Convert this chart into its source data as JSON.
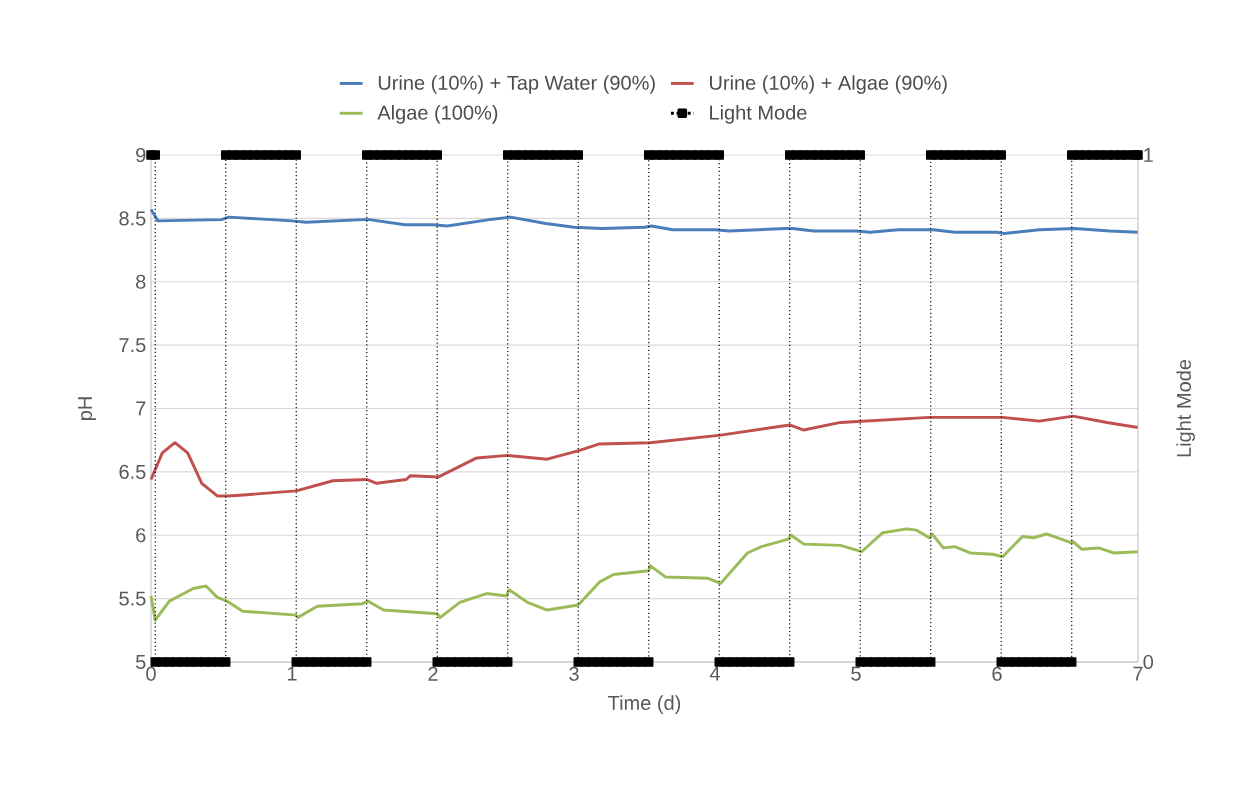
{
  "chart_data": {
    "type": "line",
    "xlabel": "Time (d)",
    "ylabel": "pH",
    "y2label": "Light Mode",
    "xlim": [
      0,
      7
    ],
    "xticks": [
      0,
      1,
      2,
      3,
      4,
      5,
      6,
      7
    ],
    "ylim": [
      5,
      9
    ],
    "yticks": [
      5,
      5.5,
      6,
      6.5,
      7,
      7.5,
      8,
      8.5,
      9
    ],
    "y2lim": [
      0,
      1
    ],
    "y2ticks": [
      0,
      1
    ],
    "grid": "y",
    "legend": "top",
    "series": [
      {
        "name": "Urine (10%) + Tap Water (90%)",
        "color": "#4a7ebb",
        "x": [
          0,
          0.05,
          0.5,
          0.55,
          1.0,
          1.1,
          1.5,
          1.55,
          1.8,
          2.0,
          2.1,
          2.4,
          2.55,
          2.8,
          3.0,
          3.2,
          3.5,
          3.55,
          3.7,
          4.0,
          4.1,
          4.5,
          4.55,
          4.7,
          5.0,
          5.1,
          5.3,
          5.55,
          5.7,
          6.0,
          6.05,
          6.3,
          6.55,
          6.8,
          7.0
        ],
        "values": [
          8.57,
          8.48,
          8.49,
          8.51,
          8.48,
          8.47,
          8.49,
          8.49,
          8.45,
          8.45,
          8.44,
          8.49,
          8.51,
          8.46,
          8.43,
          8.42,
          8.43,
          8.44,
          8.41,
          8.41,
          8.4,
          8.42,
          8.42,
          8.4,
          8.4,
          8.39,
          8.41,
          8.41,
          8.39,
          8.39,
          8.38,
          8.41,
          8.42,
          8.4,
          8.39
        ]
      },
      {
        "name": "Urine (10%) + Algae (90%)",
        "color": "#c0504d",
        "x": [
          0,
          0.08,
          0.17,
          0.26,
          0.36,
          0.47,
          0.55,
          0.68,
          1.03,
          1.29,
          1.53,
          1.6,
          1.81,
          1.84,
          2.04,
          2.31,
          2.53,
          2.81,
          3.04,
          3.18,
          3.54,
          4.04,
          4.53,
          4.63,
          4.89,
          5.52,
          6.04,
          6.3,
          6.54,
          6.78,
          7.0
        ],
        "values": [
          6.44,
          6.65,
          6.73,
          6.65,
          6.41,
          6.31,
          6.31,
          6.32,
          6.35,
          6.43,
          6.44,
          6.41,
          6.44,
          6.47,
          6.46,
          6.61,
          6.63,
          6.6,
          6.67,
          6.72,
          6.73,
          6.79,
          6.87,
          6.83,
          6.89,
          6.93,
          6.93,
          6.9,
          6.94,
          6.89,
          6.85
        ]
      },
      {
        "name": "Algae (100%)",
        "color": "#9bbb59",
        "x": [
          0,
          0.03,
          0.13,
          0.3,
          0.39,
          0.47,
          0.54,
          0.65,
          1.03,
          1.04,
          1.18,
          1.5,
          1.54,
          1.65,
          2.03,
          2.05,
          2.19,
          2.38,
          2.52,
          2.54,
          2.67,
          2.81,
          3.03,
          3.18,
          3.28,
          3.53,
          3.54,
          3.65,
          3.95,
          4.04,
          4.23,
          4.33,
          4.52,
          4.54,
          4.63,
          4.89,
          5.04,
          5.19,
          5.36,
          5.43,
          5.52,
          5.54,
          5.62,
          5.7,
          5.81,
          5.97,
          6.04,
          6.18,
          6.26,
          6.35,
          6.53,
          6.54,
          6.6,
          6.72,
          6.83,
          7.0
        ],
        "values": [
          5.52,
          5.33,
          5.48,
          5.58,
          5.6,
          5.51,
          5.48,
          5.4,
          5.37,
          5.35,
          5.44,
          5.46,
          5.48,
          5.41,
          5.38,
          5.35,
          5.47,
          5.54,
          5.52,
          5.57,
          5.47,
          5.41,
          5.45,
          5.63,
          5.69,
          5.72,
          5.76,
          5.67,
          5.66,
          5.62,
          5.86,
          5.91,
          5.97,
          6.0,
          5.93,
          5.92,
          5.87,
          6.02,
          6.05,
          6.04,
          5.98,
          6.01,
          5.9,
          5.91,
          5.86,
          5.85,
          5.83,
          5.99,
          5.98,
          6.01,
          5.94,
          5.95,
          5.89,
          5.9,
          5.86,
          5.87
        ]
      },
      {
        "name": "Light Mode",
        "color": "#000000",
        "axis": "y2",
        "marker": "square",
        "line_style": "dotted",
        "x": [
          0,
          0.03,
          0.03,
          0.08,
          0.13,
          0.18,
          0.23,
          0.28,
          0.33,
          0.38,
          0.43,
          0.48,
          0.53,
          0.53,
          0.58,
          0.63,
          0.68,
          0.73,
          0.78,
          0.83,
          0.88,
          0.93,
          0.98,
          1.03,
          1.03,
          1.08,
          1.13,
          1.18,
          1.23,
          1.28,
          1.33,
          1.38,
          1.43,
          1.48,
          1.53,
          1.53,
          1.58,
          1.63,
          1.68,
          1.73,
          1.78,
          1.83,
          1.88,
          1.93,
          1.98,
          2.03,
          2.03,
          2.08,
          2.13,
          2.18,
          2.23,
          2.28,
          2.33,
          2.38,
          2.43,
          2.48,
          2.53,
          2.53,
          2.58,
          2.63,
          2.68,
          2.73,
          2.78,
          2.83,
          2.88,
          2.93,
          2.98,
          3.03,
          3.03,
          3.08,
          3.13,
          3.18,
          3.23,
          3.28,
          3.33,
          3.38,
          3.43,
          3.48,
          3.53,
          3.53,
          3.58,
          3.63,
          3.68,
          3.73,
          3.78,
          3.83,
          3.88,
          3.93,
          3.98,
          4.03,
          4.03,
          4.08,
          4.13,
          4.18,
          4.23,
          4.28,
          4.33,
          4.38,
          4.43,
          4.48,
          4.53,
          4.53,
          4.58,
          4.63,
          4.68,
          4.73,
          4.78,
          4.83,
          4.88,
          4.93,
          4.98,
          5.03,
          5.03,
          5.08,
          5.13,
          5.18,
          5.23,
          5.28,
          5.33,
          5.38,
          5.43,
          5.48,
          5.53,
          5.53,
          5.58,
          5.63,
          5.68,
          5.73,
          5.78,
          5.83,
          5.88,
          5.93,
          5.98,
          6.03,
          6.03,
          6.08,
          6.13,
          6.18,
          6.23,
          6.28,
          6.33,
          6.38,
          6.43,
          6.48,
          6.53,
          6.53,
          6.58,
          6.63,
          6.68,
          6.73,
          6.78,
          6.83,
          6.88,
          6.93,
          6.98,
          7.0
        ],
        "values": [
          1,
          1,
          0,
          0,
          0,
          0,
          0,
          0,
          0,
          0,
          0,
          0,
          0,
          1,
          1,
          1,
          1,
          1,
          1,
          1,
          1,
          1,
          1,
          1,
          0,
          0,
          0,
          0,
          0,
          0,
          0,
          0,
          0,
          0,
          0,
          1,
          1,
          1,
          1,
          1,
          1,
          1,
          1,
          1,
          1,
          1,
          0,
          0,
          0,
          0,
          0,
          0,
          0,
          0,
          0,
          0,
          0,
          1,
          1,
          1,
          1,
          1,
          1,
          1,
          1,
          1,
          1,
          1,
          0,
          0,
          0,
          0,
          0,
          0,
          0,
          0,
          0,
          0,
          0,
          1,
          1,
          1,
          1,
          1,
          1,
          1,
          1,
          1,
          1,
          1,
          0,
          0,
          0,
          0,
          0,
          0,
          0,
          0,
          0,
          0,
          0,
          1,
          1,
          1,
          1,
          1,
          1,
          1,
          1,
          1,
          1,
          1,
          0,
          0,
          0,
          0,
          0,
          0,
          0,
          0,
          0,
          0,
          0,
          1,
          1,
          1,
          1,
          1,
          1,
          1,
          1,
          1,
          1,
          1,
          0,
          0,
          0,
          0,
          0,
          0,
          0,
          0,
          0,
          0,
          0,
          1,
          1,
          1,
          1,
          1,
          1,
          1,
          1,
          1,
          1,
          1
        ]
      }
    ]
  }
}
